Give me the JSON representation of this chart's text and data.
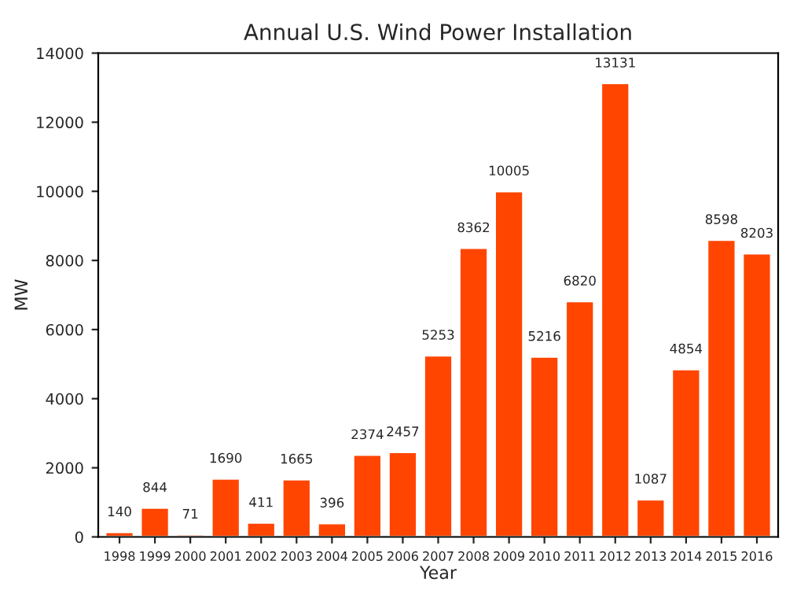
{
  "chart_data": {
    "type": "bar",
    "title": "Annual U.S. Wind Power Installation",
    "xlabel": "Year",
    "ylabel": "MW",
    "categories": [
      "1998",
      "1999",
      "2000",
      "2001",
      "2002",
      "2003",
      "2004",
      "2005",
      "2006",
      "2007",
      "2008",
      "2009",
      "2010",
      "2011",
      "2012",
      "2013",
      "2014",
      "2015",
      "2016"
    ],
    "values": [
      140,
      844,
      71,
      1690,
      411,
      1665,
      396,
      2374,
      2457,
      5253,
      8362,
      10005,
      5216,
      6820,
      13131,
      1087,
      4854,
      8598,
      8203
    ],
    "color": "#ff4500",
    "ylim": [
      0,
      14000
    ],
    "yticks": [
      0,
      2000,
      4000,
      6000,
      8000,
      10000,
      12000,
      14000
    ],
    "grid": false,
    "data_labels": true
  }
}
